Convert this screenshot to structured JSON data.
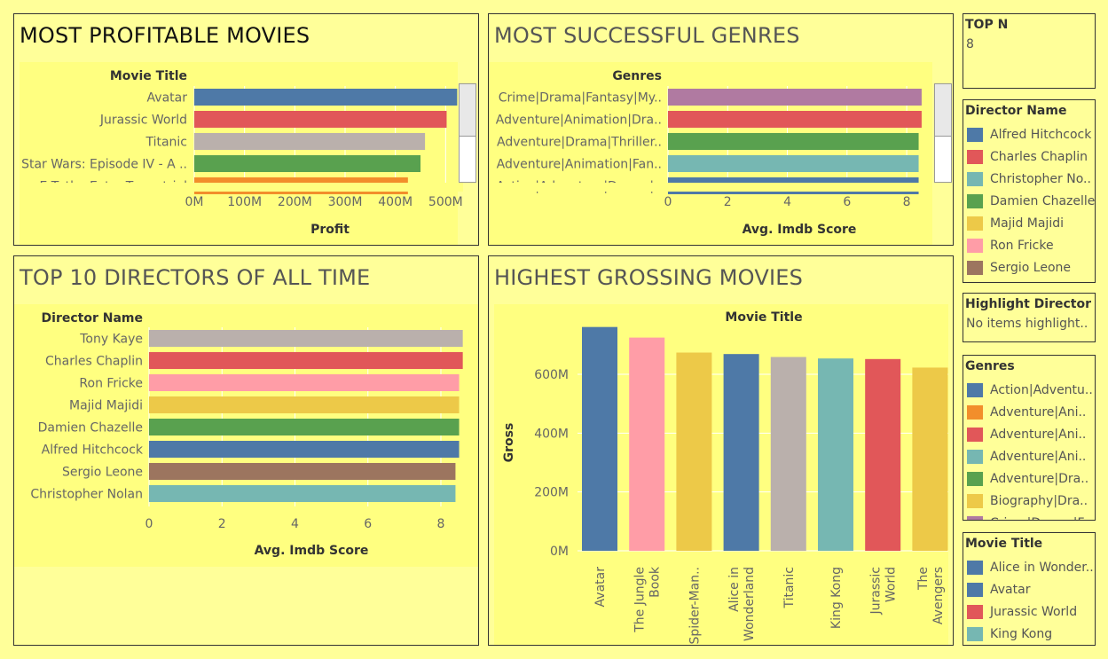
{
  "panels": {
    "profitable": {
      "title": "MOST PROFITABLE MOVIES"
    },
    "genres": {
      "title": "MOST SUCCESSFUL GENRES"
    },
    "directors": {
      "title": "TOP 10 DIRECTORS OF ALL TIME"
    },
    "grossing": {
      "title": "HIGHEST GROSSING MOVIES"
    }
  },
  "top_n": {
    "label": "TOP N",
    "value": "8"
  },
  "highlight": {
    "label": "Highlight Director ..",
    "value": "No items highlight.."
  },
  "legends": {
    "director": {
      "title": "Director Name",
      "items": [
        {
          "label": "Alfred Hitchcock",
          "color": "#4e79a7"
        },
        {
          "label": "Charles Chaplin",
          "color": "#e15759"
        },
        {
          "label": "Christopher No..",
          "color": "#76b7b2"
        },
        {
          "label": "Damien Chazelle",
          "color": "#59a14f"
        },
        {
          "label": "Majid Majidi",
          "color": "#edc948"
        },
        {
          "label": "Ron Fricke",
          "color": "#ff9da7"
        },
        {
          "label": "Sergio Leone",
          "color": "#9c755f"
        },
        {
          "label": "",
          "color": "#bab0ac"
        }
      ]
    },
    "genres": {
      "title": "Genres",
      "items": [
        {
          "label": "Action|Adventu..",
          "color": "#4e79a7"
        },
        {
          "label": "Adventure|Ani..",
          "color": "#f28e2b"
        },
        {
          "label": "Adventure|Ani..",
          "color": "#e15759"
        },
        {
          "label": "Adventure|Ani..",
          "color": "#76b7b2"
        },
        {
          "label": "Adventure|Dra..",
          "color": "#59a14f"
        },
        {
          "label": "Biography|Dra..",
          "color": "#edc948"
        },
        {
          "label": "Crime|Drama|F..",
          "color": "#b07aa1"
        }
      ]
    },
    "movie": {
      "title": "Movie Title",
      "items": [
        {
          "label": "Alice in Wonder..",
          "color": "#4e79a7"
        },
        {
          "label": "Avatar",
          "color": "#4e79a7"
        },
        {
          "label": "Jurassic World",
          "color": "#e15759"
        },
        {
          "label": "King Kong",
          "color": "#76b7b2"
        }
      ]
    }
  },
  "chart_data": [
    {
      "type": "bar",
      "orientation": "horizontal",
      "title": "MOST PROFITABLE MOVIES",
      "row_header": "Movie Title",
      "xlabel": "Profit",
      "categories": [
        "Avatar",
        "Jurassic World",
        "Titanic",
        "Star Wars: Episode IV - A ..",
        "E.T. the Extra-Terrestrial"
      ],
      "values": [
        523,
        502,
        459,
        450,
        425
      ],
      "colors": [
        "#4e79a7",
        "#e15759",
        "#bab0ac",
        "#59a14f",
        "#f28e2b"
      ],
      "xticks": [
        "0M",
        "100M",
        "200M",
        "300M",
        "400M",
        "500M"
      ],
      "xtick_values": [
        0,
        100,
        200,
        300,
        400,
        500
      ],
      "xlim": [
        0,
        540
      ],
      "units": "M"
    },
    {
      "type": "bar",
      "orientation": "horizontal",
      "title": "MOST SUCCESSFUL GENRES",
      "row_header": "Genres",
      "xlabel": "Avg. Imdb Score",
      "categories": [
        "Crime|Drama|Fantasy|My..",
        "Adventure|Animation|Dra..",
        "Adventure|Drama|Thriller..",
        "Adventure|Animation|Fan..",
        "Action|Adventure|Drama|.."
      ],
      "values": [
        8.5,
        8.5,
        8.4,
        8.4,
        8.4
      ],
      "colors": [
        "#b07aa1",
        "#e15759",
        "#59a14f",
        "#76b7b2",
        "#4e79a7"
      ],
      "xticks": [
        "0",
        "2",
        "4",
        "6",
        "8"
      ],
      "xtick_values": [
        0,
        2,
        4,
        6,
        8
      ],
      "xlim": [
        0,
        8.8
      ]
    },
    {
      "type": "bar",
      "orientation": "horizontal",
      "title": "TOP 10 DIRECTORS OF ALL TIME",
      "row_header": "Director Name",
      "xlabel": "Avg. Imdb Score",
      "categories": [
        "Tony Kaye",
        "Charles Chaplin",
        "Ron Fricke",
        "Majid Majidi",
        "Damien Chazelle",
        "Alfred Hitchcock",
        "Sergio Leone",
        "Christopher Nolan"
      ],
      "values": [
        8.6,
        8.6,
        8.5,
        8.5,
        8.5,
        8.5,
        8.4,
        8.4
      ],
      "colors": [
        "#bab0ac",
        "#e15759",
        "#ff9da7",
        "#edc948",
        "#59a14f",
        "#4e79a7",
        "#9c755f",
        "#76b7b2"
      ],
      "xticks": [
        "0",
        "2",
        "4",
        "6",
        "8"
      ],
      "xtick_values": [
        0,
        2,
        4,
        6,
        8
      ],
      "xlim": [
        0,
        8.9
      ]
    },
    {
      "type": "bar",
      "orientation": "vertical",
      "title": "HIGHEST GROSSING MOVIES",
      "col_header": "Movie Title",
      "ylabel": "Gross",
      "categories": [
        "Avatar",
        "The Jungle Book",
        "Spider-Man..",
        "Alice in Wonderland",
        "Titanic",
        "King Kong",
        "Jurassic World",
        "The Avengers"
      ],
      "category_lines": [
        [
          "Avatar"
        ],
        [
          "The Jungle",
          "Book"
        ],
        [
          "Spider-Man.."
        ],
        [
          "Alice in",
          "Wonderland"
        ],
        [
          "Titanic"
        ],
        [
          "King Kong"
        ],
        [
          "Jurassic",
          "World"
        ],
        [
          "The",
          "Avengers"
        ]
      ],
      "values": [
        761,
        725,
        674,
        669,
        659,
        654,
        652,
        623
      ],
      "colors": [
        "#4e79a7",
        "#ff9da7",
        "#edc948",
        "#4e79a7",
        "#bab0ac",
        "#76b7b2",
        "#e15759",
        "#edc948"
      ],
      "yticks": [
        "0M",
        "200M",
        "400M",
        "600M"
      ],
      "ytick_values": [
        0,
        200,
        400,
        600
      ],
      "ylim": [
        0,
        760
      ],
      "units": "M"
    }
  ]
}
